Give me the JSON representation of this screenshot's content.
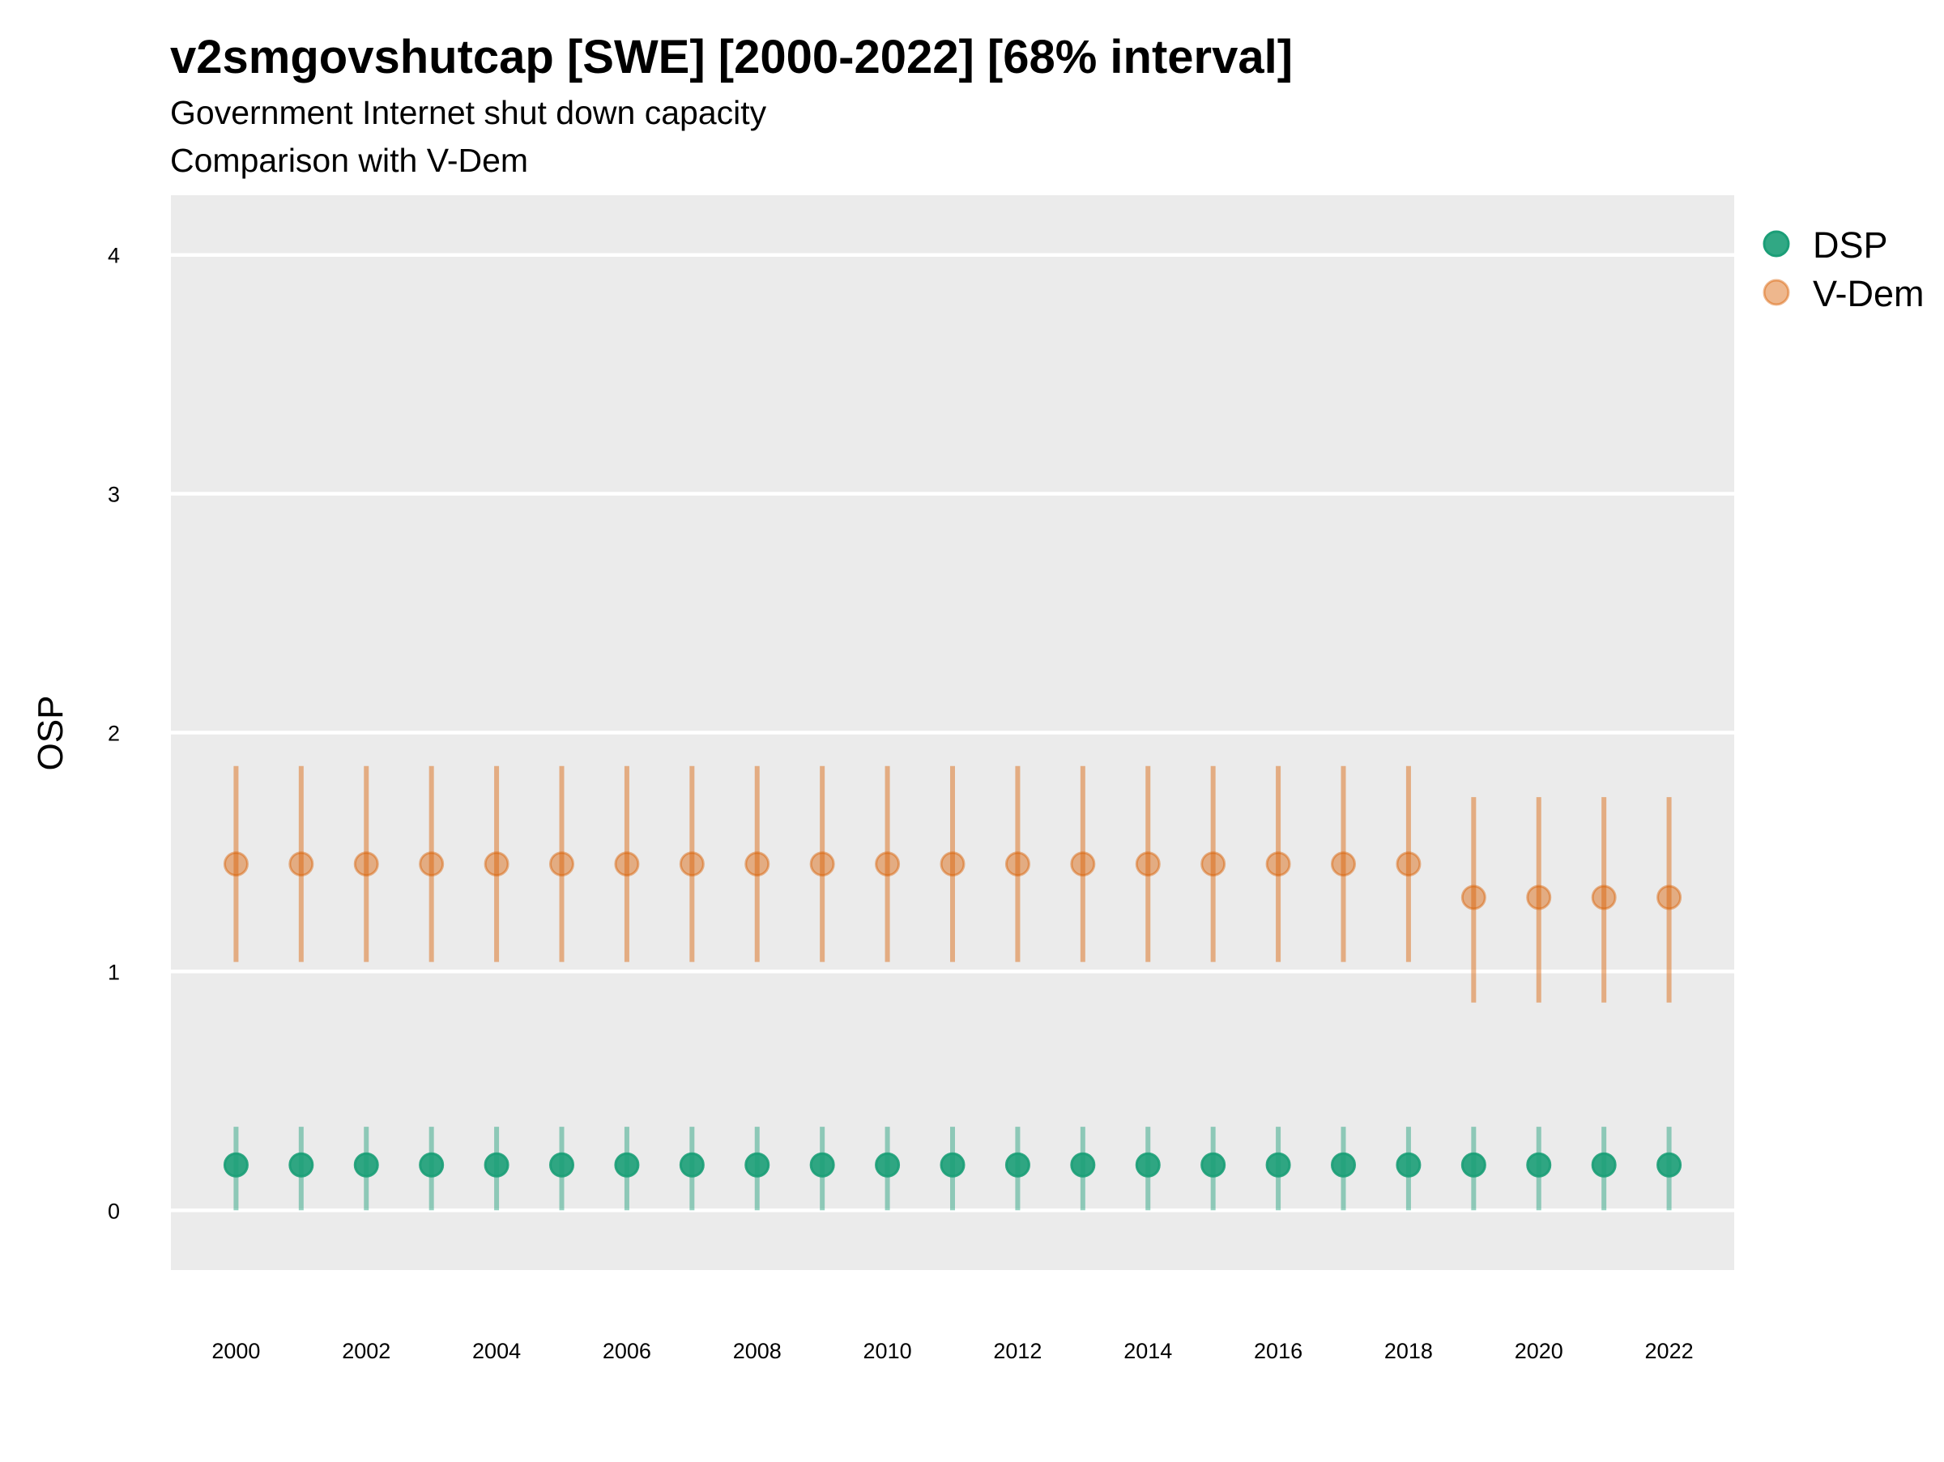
{
  "chart_data": {
    "type": "scatter",
    "title": "v2smgovshutcap [SWE] [2000-2022] [68% interval]",
    "subtitle_lines": [
      "Government Internet shut down capacity",
      "Comparison with V-Dem"
    ],
    "ylabel": "OSP",
    "xlabel": "",
    "ylim": [
      -0.25,
      4.25
    ],
    "xlim": [
      1999.0,
      2023.0
    ],
    "y_ticks": [
      0,
      1,
      2,
      3,
      4
    ],
    "x_ticks": [
      2000,
      2002,
      2004,
      2006,
      2008,
      2010,
      2012,
      2014,
      2016,
      2018,
      2020,
      2022
    ],
    "grid": true,
    "legend_position": "right-top",
    "series": [
      {
        "name": "DSP",
        "color": "#1b9e77",
        "x": [
          2000,
          2001,
          2002,
          2003,
          2004,
          2005,
          2006,
          2007,
          2008,
          2009,
          2010,
          2011,
          2012,
          2013,
          2014,
          2015,
          2016,
          2017,
          2018,
          2019,
          2020,
          2021,
          2022
        ],
        "y": [
          0.19,
          0.19,
          0.19,
          0.19,
          0.19,
          0.19,
          0.19,
          0.19,
          0.19,
          0.19,
          0.19,
          0.19,
          0.19,
          0.19,
          0.19,
          0.19,
          0.19,
          0.19,
          0.19,
          0.19,
          0.19,
          0.19,
          0.19
        ],
        "lower": [
          0.0,
          0.0,
          0.0,
          0.0,
          0.0,
          0.0,
          0.0,
          0.0,
          0.0,
          0.0,
          0.0,
          0.0,
          0.0,
          0.0,
          0.0,
          0.0,
          0.0,
          0.0,
          0.0,
          0.0,
          0.0,
          0.0,
          0.0
        ],
        "upper": [
          0.35,
          0.35,
          0.35,
          0.35,
          0.35,
          0.35,
          0.35,
          0.35,
          0.35,
          0.35,
          0.35,
          0.35,
          0.35,
          0.35,
          0.35,
          0.35,
          0.35,
          0.35,
          0.35,
          0.35,
          0.35,
          0.35,
          0.35
        ]
      },
      {
        "name": "V-Dem",
        "color": "#d95f02",
        "x": [
          2000,
          2001,
          2002,
          2003,
          2004,
          2005,
          2006,
          2007,
          2008,
          2009,
          2010,
          2011,
          2012,
          2013,
          2014,
          2015,
          2016,
          2017,
          2018,
          2019,
          2020,
          2021,
          2022
        ],
        "y": [
          1.45,
          1.45,
          1.45,
          1.45,
          1.45,
          1.45,
          1.45,
          1.45,
          1.45,
          1.45,
          1.45,
          1.45,
          1.45,
          1.45,
          1.45,
          1.45,
          1.45,
          1.45,
          1.45,
          1.31,
          1.31,
          1.31,
          1.31
        ],
        "lower": [
          1.04,
          1.04,
          1.04,
          1.04,
          1.04,
          1.04,
          1.04,
          1.04,
          1.04,
          1.04,
          1.04,
          1.04,
          1.04,
          1.04,
          1.04,
          1.04,
          1.04,
          1.04,
          1.04,
          0.87,
          0.87,
          0.87,
          0.87
        ],
        "upper": [
          1.86,
          1.86,
          1.86,
          1.86,
          1.86,
          1.86,
          1.86,
          1.86,
          1.86,
          1.86,
          1.86,
          1.86,
          1.86,
          1.86,
          1.86,
          1.86,
          1.86,
          1.86,
          1.86,
          1.73,
          1.73,
          1.73,
          1.73
        ]
      }
    ]
  }
}
